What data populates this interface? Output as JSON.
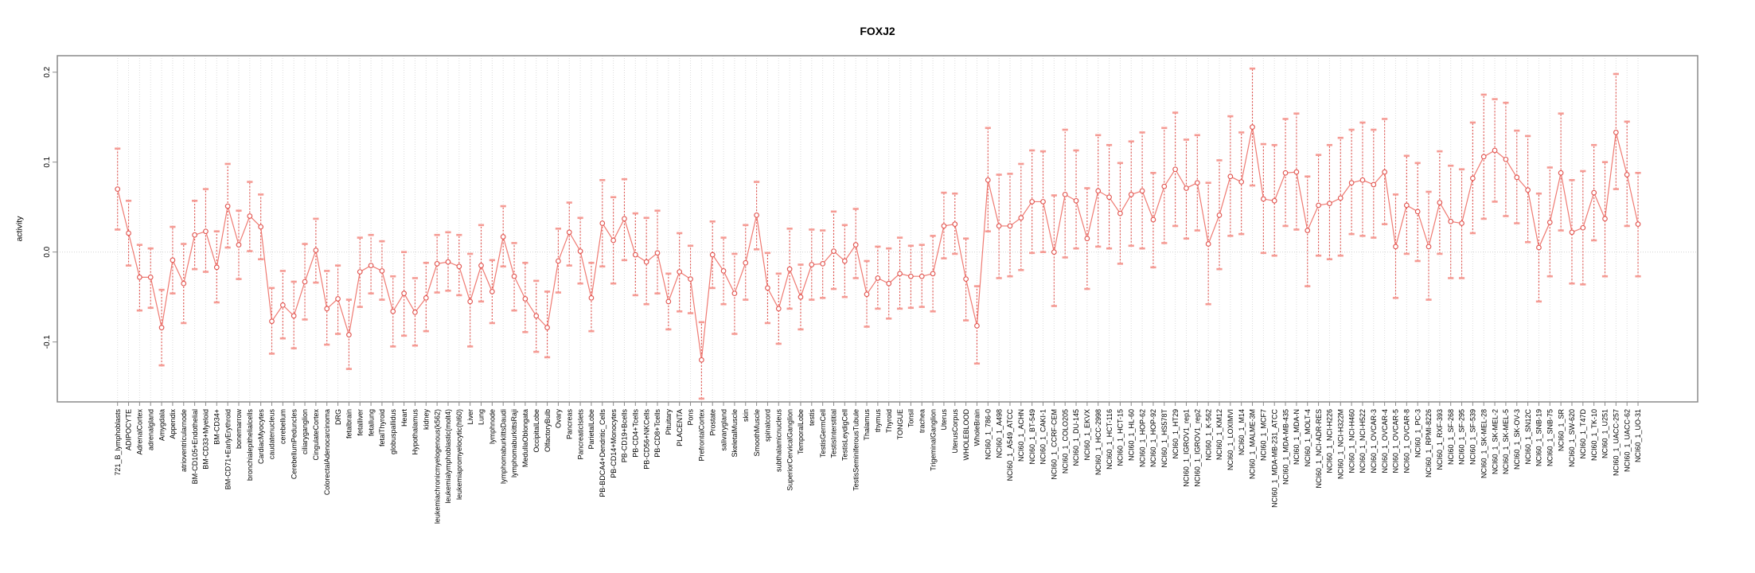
{
  "chart_data": {
    "type": "line",
    "error_bars": true,
    "title": "FOXJ2",
    "ylabel": "activity",
    "xlabel": "",
    "ylim": [
      -0.175,
      0.218
    ],
    "ytick_values": [
      0.2,
      0.1,
      0.0,
      -0.1
    ],
    "ytick_labels": [
      "0.2",
      "0.1",
      "0.0",
      "-0.1"
    ],
    "grid": "vertical dotted gridline per category, dotted horizontal line at 0",
    "legend": "none",
    "colors": {
      "bar": "#e1524d",
      "cap": "#f59b94",
      "line": "#ef7a72",
      "grid": "#dcdcdc",
      "zero": "#d4d4d4",
      "border": "#8a8a8a",
      "text": "#000000"
    },
    "categories": [
      "721_B_lymphoblasts",
      "ADIPOCYTE",
      "AdrenalCortex",
      "adrenalgland",
      "Amygdala",
      "Appendix",
      "atrioventricularnode",
      "BM-CD105+Endothelial",
      "BM-CD33+Myeloid",
      "BM-CD34+",
      "BM-CD71+EarlyErythroid",
      "bonemarrow",
      "bronchialepithelialcells",
      "CardiacMyocytes",
      "caudatenucleus",
      "cerebellum",
      "CerebellumPeduncles",
      "ciliaryganglion",
      "CingulateCortex",
      "ColorectalAdenocarcinoma",
      "DRG",
      "fetalbrain",
      "fetalliver",
      "fetallung",
      "fetalThyroid",
      "globuspallidus",
      "Heart",
      "Hypothalamus",
      "kidney",
      "leukemiachronicmyelogenous(k562)",
      "leukemialymphoblastic(molt4)",
      "leukemiapromyelocytic(hl60)",
      "Liver",
      "Lung",
      "lymphnode",
      "lymphomaburkittsDaudi",
      "lymphomaburkittsRaji",
      "MedullaOblongata",
      "OccipitalLobe",
      "OlfactoryBulb",
      "Ovary",
      "Pancreas",
      "PancreaticIslets",
      "ParietalLobe",
      "PB-BDCA4+Dendritic_Cells",
      "PB-CD14+Monocytes",
      "PB-CD19+Bcells",
      "PB-CD4+Tcells",
      "PB-CD56+NKCells",
      "PB-CD8+Tcells",
      "Pituitary",
      "PLACENTA",
      "Pons",
      "PrefrontalCortex",
      "Prostate",
      "salivarygland",
      "SkeletalMuscle",
      "skin",
      "SmoothMuscle",
      "spinalcord",
      "subthalamicnucleus",
      "SuperiorCervicalGanglion",
      "TemporalLobe",
      "testis",
      "TestisGermCell",
      "TestisInterstitial",
      "TestisLeydigCell",
      "TestisSeminiferousTubule",
      "Thalamus",
      "thymus",
      "Thyroid",
      "TONGUE",
      "Tonsil",
      "trachea",
      "TrigeminalGanglion",
      "Uterus",
      "UterusCorpus",
      "WHOLEBLOOD",
      "WholeBrain",
      "NCI60_1_786-0",
      "NCI60_1_A498",
      "NCI60_1_A549_ATCC",
      "NCI60_1_ACHN",
      "NCI60_1_BT-549",
      "NCI60_1_CAKI-1",
      "NCI60_1_CCRF-CEM",
      "NCI60_1_COLO205",
      "NCI60_1_DU-145",
      "NCI60_1_EKVX",
      "NCI60_1_HCC-2998",
      "NCI60_1_HCT-116",
      "NCI60_1_HCT-15",
      "NCI60_1_HL-60",
      "NCI60_1_HOP-62",
      "NCI60_1_HOP-92",
      "NCI60_1_HS578T",
      "NCI60_1_HT29",
      "NCI60_1_IGROV1_rep1",
      "NCI60_1_IGROV1_rep2",
      "NCI60_1_K-562",
      "NCI60_1_KM12",
      "NCI60_1_LOXIMVI",
      "NCI60_1_M14",
      "NCI60_1_MALME-3M",
      "NCI60_1_MCF7",
      "NCI60_1_MDA-MB-231_ATCC",
      "NCI60_1_MDA-MB-435",
      "NCI60_1_MDA-N",
      "NCI60_1_MOLT-4",
      "NCI60_1_NCI-ADR-RES",
      "NCI60_1_NCI-H226",
      "NCI60_1_NCI-H322M",
      "NCI60_1_NCI-H460",
      "NCI60_1_NCI-H522",
      "NCI60_1_OVCAR-3",
      "NCI60_1_OVCAR-4",
      "NCI60_1_OVCAR-5",
      "NCI60_1_OVCAR-8",
      "NCI60_1_PC-3",
      "NCI60_1_RPMI-8226",
      "NCI60_1_RXF-393",
      "NCI60_1_SF-268",
      "NCI60_1_SF-295",
      "NCI60_1_SF-539",
      "NCI60_1_SK-MEL-28",
      "NCI60_1_SK-MEL-2",
      "NCI60_1_SK-MEL-5",
      "NCI60_1_SK-OV-3",
      "NCI60_1_SN12C",
      "NCI60_1_SNB-19",
      "NCI60_1_SNB-75",
      "NCI60_1_SR",
      "NCI60_1_SW-620",
      "NCI60_1_T47D",
      "NCI60_1_TK-10",
      "NCI60_1_U251",
      "NCI60_1_UACC-257",
      "NCI60_1_UACC-62",
      "NCI60_1_UO-31"
    ],
    "values": [
      0.07,
      0.021,
      -0.028,
      -0.028,
      -0.084,
      -0.009,
      -0.035,
      0.019,
      0.023,
      -0.017,
      0.051,
      0.008,
      0.04,
      0.028,
      -0.077,
      -0.059,
      -0.071,
      -0.033,
      0.002,
      -0.063,
      -0.052,
      -0.092,
      -0.022,
      -0.015,
      -0.021,
      -0.066,
      -0.046,
      -0.067,
      -0.051,
      -0.013,
      -0.011,
      -0.016,
      -0.055,
      -0.015,
      -0.044,
      0.017,
      -0.027,
      -0.052,
      -0.071,
      -0.084,
      -0.01,
      0.022,
      0.001,
      -0.051,
      0.032,
      0.013,
      0.037,
      -0.003,
      -0.011,
      -0.001,
      -0.055,
      -0.022,
      -0.03,
      -0.12,
      -0.003,
      -0.021,
      -0.046,
      -0.012,
      0.041,
      -0.04,
      -0.063,
      -0.019,
      -0.05,
      -0.014,
      -0.013,
      0.001,
      -0.01,
      0.008,
      -0.047,
      -0.029,
      -0.035,
      -0.024,
      -0.027,
      -0.027,
      -0.024,
      0.029,
      0.031,
      -0.03,
      -0.082,
      0.08,
      0.029,
      0.029,
      0.038,
      0.056,
      0.056,
      0.0,
      0.064,
      0.057,
      0.015,
      0.068,
      0.061,
      0.043,
      0.064,
      0.068,
      0.036,
      0.073,
      0.092,
      0.071,
      0.077,
      0.009,
      0.041,
      0.084,
      0.078,
      0.139,
      0.059,
      0.057,
      0.088,
      0.089,
      0.024,
      0.052,
      0.054,
      0.06,
      0.077,
      0.08,
      0.075,
      0.089,
      0.006,
      0.052,
      0.045,
      0.006,
      0.055,
      0.034,
      0.032,
      0.082,
      0.106,
      0.113,
      0.103,
      0.083,
      0.069,
      0.005,
      0.033,
      0.088,
      0.022,
      0.027,
      0.066,
      0.037,
      0.133,
      0.086,
      0.031
    ],
    "error_low": [
      0.025,
      -0.015,
      -0.065,
      -0.062,
      -0.126,
      -0.046,
      -0.079,
      -0.019,
      -0.022,
      -0.056,
      0.005,
      -0.03,
      0.001,
      -0.008,
      -0.113,
      -0.096,
      -0.107,
      -0.075,
      -0.034,
      -0.103,
      -0.091,
      -0.13,
      -0.061,
      -0.046,
      -0.053,
      -0.105,
      -0.093,
      -0.104,
      -0.088,
      -0.045,
      -0.043,
      -0.048,
      -0.105,
      -0.055,
      -0.079,
      -0.016,
      -0.065,
      -0.089,
      -0.111,
      -0.117,
      -0.045,
      -0.015,
      -0.035,
      -0.088,
      -0.016,
      -0.035,
      -0.009,
      -0.048,
      -0.058,
      -0.046,
      -0.086,
      -0.066,
      -0.068,
      -0.163,
      -0.04,
      -0.058,
      -0.091,
      -0.053,
      0.003,
      -0.079,
      -0.102,
      -0.063,
      -0.086,
      -0.053,
      -0.051,
      -0.041,
      -0.05,
      -0.029,
      -0.083,
      -0.063,
      -0.074,
      -0.063,
      -0.062,
      -0.061,
      -0.066,
      -0.007,
      -0.002,
      -0.076,
      -0.124,
      0.023,
      -0.029,
      -0.027,
      -0.02,
      -0.001,
      0.0,
      -0.06,
      -0.006,
      0.004,
      -0.041,
      0.006,
      0.004,
      -0.013,
      0.007,
      0.004,
      -0.017,
      0.01,
      0.029,
      0.015,
      0.024,
      -0.058,
      -0.019,
      0.018,
      0.02,
      0.074,
      -0.001,
      -0.004,
      0.029,
      0.025,
      -0.038,
      -0.004,
      -0.008,
      -0.004,
      0.02,
      0.018,
      0.016,
      0.031,
      -0.051,
      -0.002,
      -0.01,
      -0.053,
      -0.002,
      -0.029,
      -0.029,
      0.021,
      0.037,
      0.056,
      0.04,
      0.032,
      0.011,
      -0.055,
      -0.027,
      0.024,
      -0.035,
      -0.036,
      0.013,
      -0.027,
      0.07,
      0.029,
      -0.027
    ],
    "error_high": [
      0.115,
      0.057,
      0.008,
      0.004,
      -0.042,
      0.028,
      0.009,
      0.057,
      0.07,
      0.023,
      0.098,
      0.046,
      0.078,
      0.064,
      -0.04,
      -0.021,
      -0.033,
      0.009,
      0.037,
      -0.021,
      -0.015,
      -0.053,
      0.016,
      0.019,
      0.012,
      -0.027,
      0.0,
      -0.029,
      -0.012,
      0.019,
      0.022,
      0.019,
      -0.002,
      0.03,
      -0.009,
      0.051,
      0.01,
      -0.012,
      -0.032,
      -0.044,
      0.026,
      0.055,
      0.038,
      -0.012,
      0.08,
      0.061,
      0.081,
      0.043,
      0.038,
      0.046,
      -0.024,
      0.021,
      0.007,
      -0.078,
      0.034,
      0.016,
      -0.002,
      0.03,
      0.078,
      -0.001,
      -0.024,
      0.026,
      -0.014,
      0.025,
      0.024,
      0.045,
      0.03,
      0.048,
      -0.01,
      0.006,
      0.004,
      0.016,
      0.007,
      0.008,
      0.018,
      0.066,
      0.065,
      0.015,
      -0.038,
      0.138,
      0.086,
      0.087,
      0.098,
      0.113,
      0.112,
      0.063,
      0.136,
      0.113,
      0.071,
      0.13,
      0.119,
      0.099,
      0.123,
      0.133,
      0.088,
      0.138,
      0.155,
      0.125,
      0.13,
      0.077,
      0.102,
      0.151,
      0.133,
      0.204,
      0.12,
      0.119,
      0.148,
      0.154,
      0.084,
      0.108,
      0.119,
      0.127,
      0.136,
      0.144,
      0.136,
      0.148,
      0.064,
      0.107,
      0.099,
      0.067,
      0.112,
      0.096,
      0.092,
      0.144,
      0.175,
      0.17,
      0.166,
      0.135,
      0.129,
      0.065,
      0.094,
      0.154,
      0.08,
      0.09,
      0.119,
      0.1,
      0.198,
      0.145,
      0.088
    ]
  }
}
